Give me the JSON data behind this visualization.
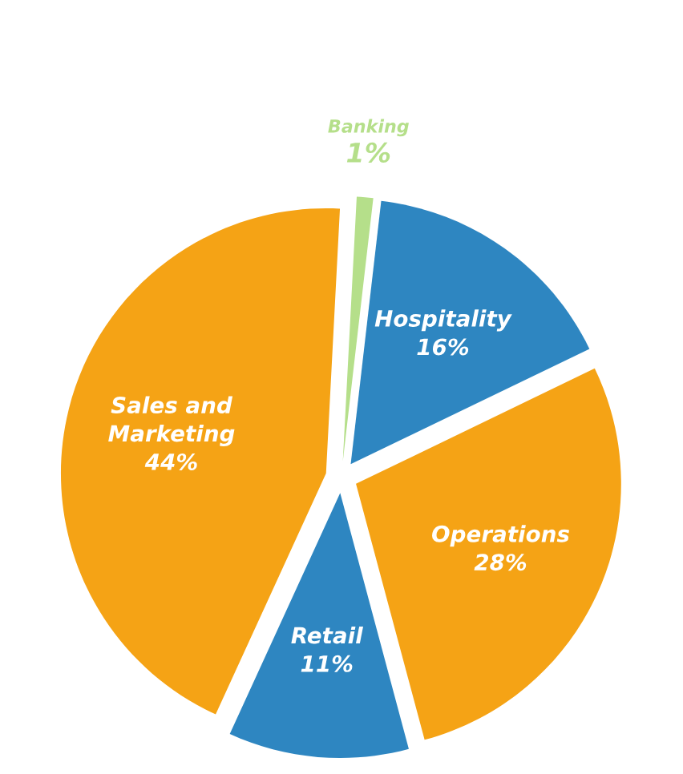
{
  "chart_data": {
    "type": "pie",
    "categories": [
      "Banking",
      "Hospitality",
      "Operations",
      "Retail",
      "Sales and Marketing"
    ],
    "values": [
      1,
      16,
      28,
      11,
      44
    ],
    "value_labels": [
      "1%",
      "16%",
      "28%",
      "11%",
      "44%"
    ],
    "colors": [
      "#b5df8a",
      "#2e86c1",
      "#f5a315",
      "#2e86c1",
      "#f5a315"
    ]
  }
}
